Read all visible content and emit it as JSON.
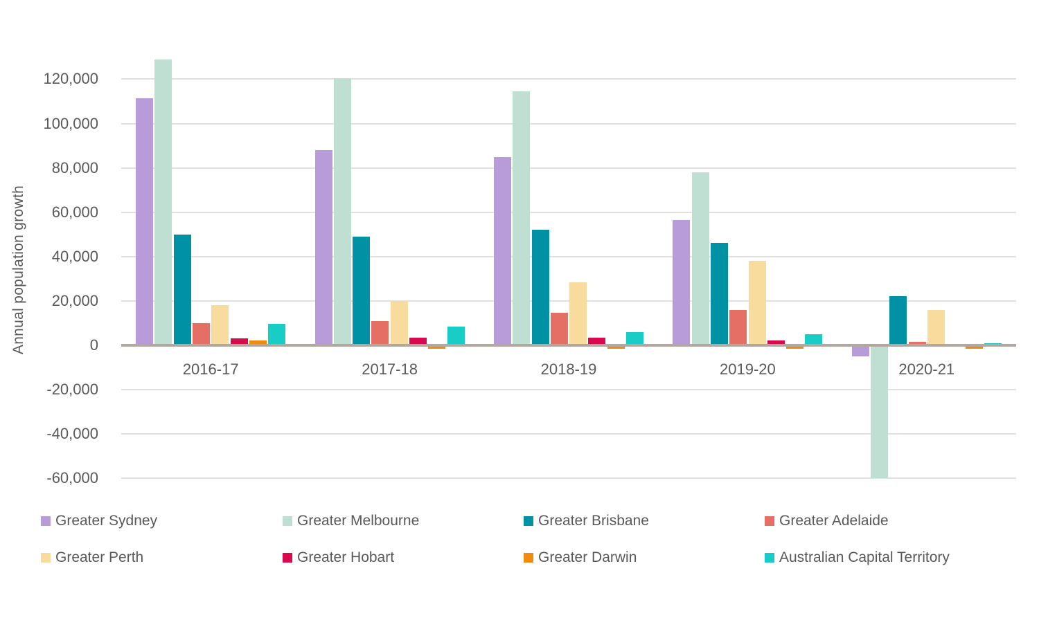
{
  "chart_data": {
    "type": "bar",
    "title": "",
    "xlabel": "",
    "ylabel": "Annual population growth",
    "categories": [
      "2016-17",
      "2017-18",
      "2018-19",
      "2019-20",
      "2020-21"
    ],
    "series": [
      {
        "name": "Greater Sydney",
        "color": "#b79cd9",
        "values": [
          111500,
          88000,
          85000,
          56500,
          -5000
        ]
      },
      {
        "name": "Greater Melbourne",
        "color": "#bedfd2",
        "values": [
          129000,
          120500,
          114500,
          78000,
          -60000
        ]
      },
      {
        "name": "Greater Brisbane",
        "color": "#0091a4",
        "values": [
          50000,
          49000,
          52000,
          46000,
          22000
        ]
      },
      {
        "name": "Greater Adelaide",
        "color": "#e56f64",
        "values": [
          10000,
          11000,
          14500,
          16000,
          1500
        ]
      },
      {
        "name": "Greater Perth",
        "color": "#f8dc9e",
        "values": [
          18000,
          20000,
          28500,
          38000,
          16000
        ]
      },
      {
        "name": "Greater Hobart",
        "color": "#d8094c",
        "values": [
          3000,
          3500,
          3500,
          2000,
          0
        ]
      },
      {
        "name": "Greater Darwin",
        "color": "#ef8c10",
        "values": [
          2000,
          -1500,
          -1500,
          -1500,
          -1500
        ]
      },
      {
        "name": "Australian Capital Territory",
        "color": "#17cdc6",
        "values": [
          9500,
          8500,
          6000,
          5000,
          1000
        ]
      }
    ],
    "ylim": [
      -60000,
      132000
    ],
    "y_tick_step": 20000,
    "y_tick_values": [
      120000,
      100000,
      80000,
      60000,
      40000,
      20000,
      0,
      -20000,
      -40000,
      -60000
    ],
    "y_tick_labels": [
      "120,000",
      "100,000",
      "80,000",
      "60,000",
      "40,000",
      "20,000",
      "0",
      "-20,000",
      "-40,000",
      "-60,000"
    ],
    "grid": true,
    "legend_position": "bottom",
    "legend_rows": 2,
    "colors": {
      "axis_line": "#b3a89f",
      "gridline": "#e0e0e0",
      "text": "#595959",
      "background": "#ffffff"
    }
  }
}
